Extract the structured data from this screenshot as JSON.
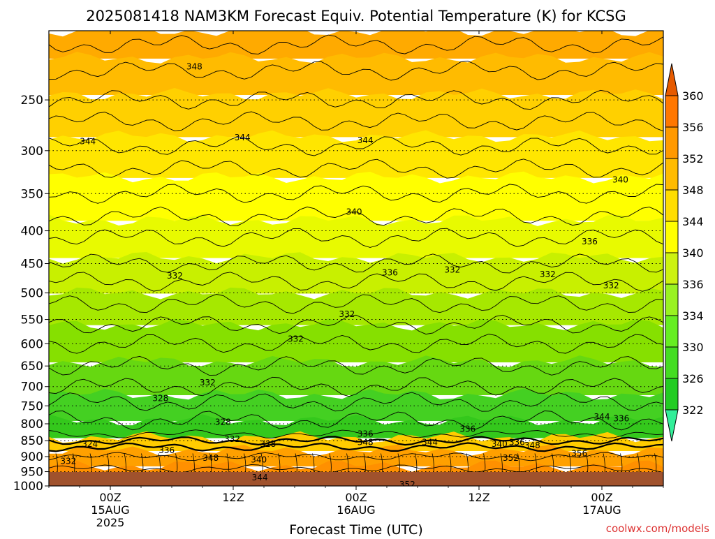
{
  "title": "2025081418 NAM3KM Forecast Equiv. Potential Temperature (K) for KCSG",
  "credit": "coolwx.com/models",
  "chart_data": {
    "type": "heatmap",
    "xlabel": "Forecast Time (UTC)",
    "ylabel": "",
    "y_scale": "log",
    "y_reversed": true,
    "ylim": [
      1000,
      195
    ],
    "xlim_hours": [
      -6,
      54
    ],
    "x_ticks": [
      {
        "hour": 0,
        "lines": [
          "00Z",
          "15AUG",
          "2025"
        ]
      },
      {
        "hour": 12,
        "lines": [
          "12Z"
        ]
      },
      {
        "hour": 24,
        "lines": [
          "00Z",
          "16AUG"
        ]
      },
      {
        "hour": 36,
        "lines": [
          "12Z"
        ]
      },
      {
        "hour": 48,
        "lines": [
          "00Z",
          "17AUG"
        ]
      }
    ],
    "y_ticks": [
      250,
      300,
      350,
      400,
      450,
      500,
      550,
      600,
      650,
      700,
      750,
      800,
      850,
      900,
      950,
      1000
    ],
    "colorbar": {
      "levels": [
        322,
        326,
        330,
        334,
        336,
        340,
        344,
        348,
        352,
        356,
        360
      ],
      "colors": [
        "#33ee99",
        "#22cc22",
        "#44dd22",
        "#66ee22",
        "#99f222",
        "#ccf211",
        "#ffff00",
        "#ffdd00",
        "#ffbb00",
        "#ff9900",
        "#ff7700",
        "#e65a00"
      ]
    },
    "contour_labels": [
      {
        "value": "348",
        "hour": 8.2,
        "p": 222
      },
      {
        "value": "344",
        "hour": -2.2,
        "p": 290
      },
      {
        "value": "344",
        "hour": 12.9,
        "p": 286
      },
      {
        "value": "344",
        "hour": 24.9,
        "p": 289
      },
      {
        "value": "340",
        "hour": 23.8,
        "p": 374
      },
      {
        "value": "340",
        "hour": 49.8,
        "p": 333
      },
      {
        "value": "336",
        "hour": 46.8,
        "p": 416
      },
      {
        "value": "336",
        "hour": 27.3,
        "p": 465
      },
      {
        "value": "332",
        "hour": 6.3,
        "p": 470
      },
      {
        "value": "332",
        "hour": 33.4,
        "p": 460
      },
      {
        "value": "332",
        "hour": 42.7,
        "p": 468
      },
      {
        "value": "332",
        "hour": 48.9,
        "p": 487
      },
      {
        "value": "332",
        "hour": 23.1,
        "p": 540
      },
      {
        "value": "332",
        "hour": 18.1,
        "p": 590
      },
      {
        "value": "332",
        "hour": 9.5,
        "p": 690
      },
      {
        "value": "328",
        "hour": 4.9,
        "p": 730
      },
      {
        "value": "328",
        "hour": 11.0,
        "p": 795
      },
      {
        "value": "332",
        "hour": 11.9,
        "p": 845
      },
      {
        "value": "328",
        "hour": 15.4,
        "p": 860
      },
      {
        "value": "324",
        "hour": -2.0,
        "p": 860
      },
      {
        "value": "336",
        "hour": 5.5,
        "p": 880
      },
      {
        "value": "332",
        "hour": -4.1,
        "p": 915
      },
      {
        "value": "348",
        "hour": 9.8,
        "p": 905
      },
      {
        "value": "340",
        "hour": 14.5,
        "p": 910
      },
      {
        "value": "344",
        "hour": 14.6,
        "p": 970
      },
      {
        "value": "336",
        "hour": 34.9,
        "p": 815
      },
      {
        "value": "336",
        "hour": 24.9,
        "p": 830
      },
      {
        "value": "348",
        "hour": 24.9,
        "p": 855
      },
      {
        "value": "344",
        "hour": 31.2,
        "p": 855
      },
      {
        "value": "340",
        "hour": 38.0,
        "p": 860
      },
      {
        "value": "336",
        "hour": 39.7,
        "p": 855
      },
      {
        "value": "348",
        "hour": 41.2,
        "p": 865
      },
      {
        "value": "344",
        "hour": 48.0,
        "p": 780
      },
      {
        "value": "336",
        "hour": 49.9,
        "p": 785
      },
      {
        "value": "352",
        "hour": 39.1,
        "p": 905
      },
      {
        "value": "356",
        "hour": 45.8,
        "p": 890
      },
      {
        "value": "352",
        "hour": 29.0,
        "p": 995
      }
    ]
  }
}
